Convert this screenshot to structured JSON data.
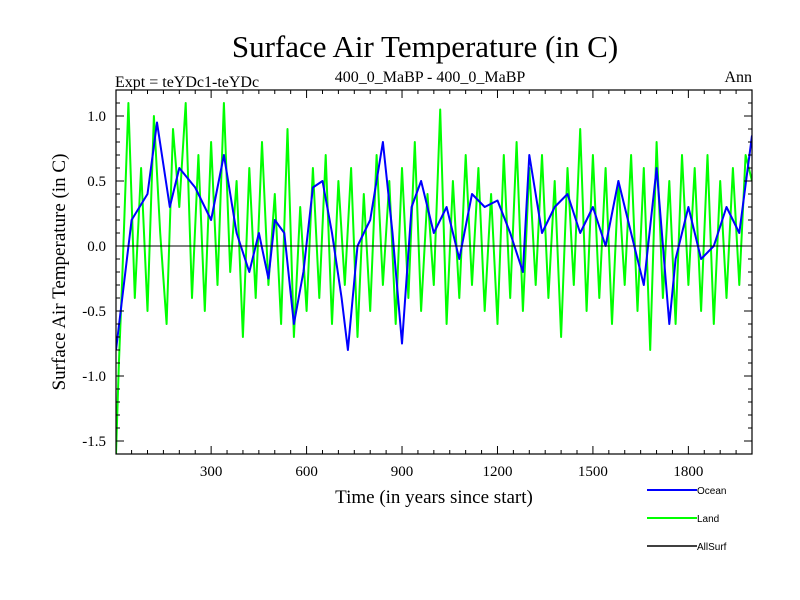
{
  "chart_data": {
    "type": "line",
    "title": "Surface Air Temperature (in C)",
    "subtitle_left": "Expt = teYDc1-teYDc",
    "subtitle_center": "400_0_MaBP - 400_0_MaBP",
    "subtitle_right": "Ann",
    "xlabel": "Time (in years since start)",
    "ylabel": "Surface Air Temperature (in C)",
    "xlim": [
      1,
      2000
    ],
    "ylim": [
      -1.6,
      1.2
    ],
    "xticks": [
      300,
      600,
      900,
      1200,
      1500,
      1800
    ],
    "xtick_labels": [
      "300",
      "600",
      "900",
      "1200",
      "1500",
      "1800"
    ],
    "yticks": [
      1.0,
      0.5,
      0.0,
      -0.5,
      -1.0,
      -1.5
    ],
    "ytick_labels": [
      "1.0",
      "0.5",
      "0.0",
      "-0.5",
      "-1.0",
      "-1.5"
    ],
    "zero_line": true,
    "legend_position": "bottom-right",
    "series": [
      {
        "name": "Ocean",
        "color": "#0000ff",
        "x": [
          1,
          50,
          100,
          130,
          170,
          200,
          250,
          300,
          340,
          380,
          420,
          450,
          480,
          500,
          530,
          560,
          590,
          620,
          650,
          680,
          710,
          730,
          760,
          800,
          840,
          870,
          900,
          930,
          960,
          1000,
          1040,
          1080,
          1120,
          1160,
          1200,
          1240,
          1280,
          1300,
          1340,
          1380,
          1420,
          1460,
          1500,
          1540,
          1580,
          1620,
          1660,
          1700,
          1740,
          1760,
          1800,
          1840,
          1880,
          1920,
          1960,
          2000
        ],
        "values": [
          -0.8,
          0.2,
          0.4,
          0.95,
          0.3,
          0.6,
          0.45,
          0.2,
          0.7,
          0.1,
          -0.2,
          0.1,
          -0.25,
          0.2,
          0.1,
          -0.6,
          -0.2,
          0.45,
          0.5,
          0.1,
          -0.4,
          -0.8,
          0.0,
          0.2,
          0.8,
          0.1,
          -0.75,
          0.3,
          0.5,
          0.1,
          0.3,
          -0.1,
          0.4,
          0.3,
          0.35,
          0.1,
          -0.2,
          0.7,
          0.1,
          0.3,
          0.4,
          0.1,
          0.3,
          0.0,
          0.5,
          0.1,
          -0.3,
          0.6,
          -0.6,
          -0.1,
          0.3,
          -0.1,
          0.0,
          0.3,
          0.1,
          0.85
        ]
      },
      {
        "name": "Land",
        "color": "#00ff00",
        "x": [
          1,
          10,
          20,
          40,
          60,
          80,
          100,
          120,
          140,
          160,
          180,
          200,
          220,
          240,
          260,
          280,
          300,
          320,
          340,
          360,
          380,
          400,
          420,
          440,
          460,
          480,
          500,
          520,
          540,
          560,
          580,
          600,
          620,
          640,
          660,
          680,
          700,
          720,
          740,
          760,
          780,
          800,
          820,
          840,
          860,
          880,
          900,
          920,
          940,
          960,
          980,
          1000,
          1020,
          1040,
          1060,
          1080,
          1100,
          1120,
          1140,
          1160,
          1180,
          1200,
          1220,
          1240,
          1260,
          1280,
          1300,
          1320,
          1340,
          1360,
          1380,
          1400,
          1420,
          1440,
          1460,
          1480,
          1500,
          1520,
          1540,
          1560,
          1580,
          1600,
          1620,
          1640,
          1660,
          1680,
          1700,
          1720,
          1740,
          1760,
          1780,
          1800,
          1820,
          1840,
          1860,
          1880,
          1900,
          1920,
          1940,
          1960,
          1980,
          2000
        ],
        "values": [
          -1.6,
          -0.9,
          -0.3,
          1.1,
          -0.4,
          0.6,
          -0.5,
          1.0,
          0.1,
          -0.6,
          0.9,
          0.3,
          1.1,
          -0.4,
          0.7,
          -0.5,
          0.8,
          -0.3,
          1.1,
          -0.2,
          0.5,
          -0.7,
          0.6,
          -0.4,
          0.8,
          -0.3,
          0.4,
          -0.6,
          0.9,
          -0.7,
          0.3,
          -0.5,
          0.6,
          -0.4,
          0.7,
          -0.6,
          0.5,
          -0.3,
          0.6,
          -0.7,
          0.4,
          -0.5,
          0.7,
          -0.3,
          0.5,
          -0.6,
          0.6,
          -0.4,
          0.8,
          -0.5,
          0.4,
          -0.3,
          1.05,
          -0.6,
          0.5,
          -0.4,
          0.7,
          -0.3,
          0.6,
          -0.5,
          0.4,
          -0.6,
          0.7,
          -0.4,
          0.8,
          -0.5,
          0.6,
          -0.3,
          0.7,
          -0.4,
          0.5,
          -0.7,
          0.6,
          -0.3,
          0.9,
          -0.5,
          0.7,
          -0.4,
          0.6,
          -0.6,
          0.5,
          -0.3,
          0.7,
          -0.5,
          0.6,
          -0.8,
          0.8,
          -0.4,
          0.5,
          -0.6,
          0.7,
          -0.3,
          0.6,
          -0.5,
          0.7,
          -0.6,
          0.5,
          -0.4,
          0.6,
          -0.3,
          0.7,
          0.5
        ]
      },
      {
        "name": "AllSurf",
        "color": "#000000",
        "x": [],
        "values": []
      }
    ]
  }
}
